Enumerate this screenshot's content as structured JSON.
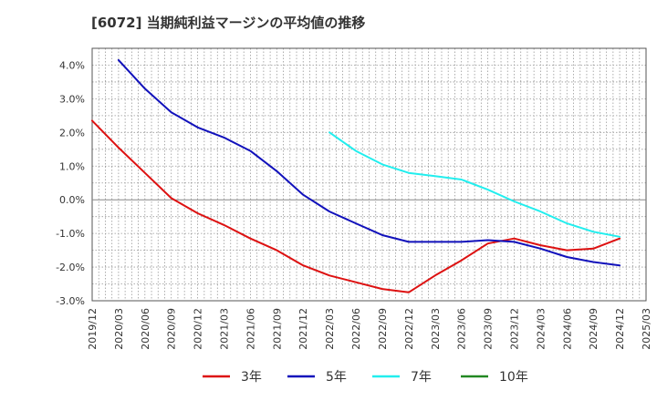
{
  "chart_data": {
    "type": "line",
    "title": "[6072]  当期純利益マージンの平均値の推移",
    "xlabel": "",
    "ylabel": "",
    "x": [
      "2019/12",
      "2020/03",
      "2020/06",
      "2020/09",
      "2020/12",
      "2021/03",
      "2021/06",
      "2021/09",
      "2021/12",
      "2022/03",
      "2022/06",
      "2022/09",
      "2022/12",
      "2023/03",
      "2023/06",
      "2023/09",
      "2023/12",
      "2024/03",
      "2024/06",
      "2024/09",
      "2024/12",
      "2025/03"
    ],
    "ylim": [
      -3.0,
      4.5
    ],
    "yticks": [
      4.0,
      3.0,
      2.0,
      1.0,
      0.0,
      -1.0,
      -2.0,
      -3.0
    ],
    "ytick_labels": [
      "4.0%",
      "3.0%",
      "2.0%",
      "1.0%",
      "0.0%",
      "-1.0%",
      "-2.0%",
      "-3.0%"
    ],
    "grid": true,
    "legend_position": "bottom",
    "series": [
      {
        "name": "3年",
        "color": "#dd1111",
        "values": [
          2.35,
          1.55,
          0.8,
          0.05,
          -0.4,
          -0.75,
          -1.15,
          -1.5,
          -1.95,
          -2.25,
          -2.45,
          -2.65,
          -2.75,
          -2.25,
          -1.8,
          -1.3,
          -1.15,
          -1.35,
          -1.5,
          -1.45,
          -1.15,
          null
        ]
      },
      {
        "name": "5年",
        "color": "#1111bb",
        "values": [
          null,
          4.15,
          3.3,
          2.6,
          2.15,
          1.85,
          1.45,
          0.85,
          0.15,
          -0.35,
          -0.7,
          -1.05,
          -1.25,
          -1.25,
          -1.25,
          -1.2,
          -1.25,
          -1.45,
          -1.7,
          -1.85,
          -1.95,
          null
        ]
      },
      {
        "name": "7年",
        "color": "#22eeee",
        "values": [
          null,
          null,
          null,
          null,
          null,
          null,
          null,
          null,
          null,
          2.0,
          1.45,
          1.05,
          0.8,
          0.7,
          0.6,
          0.3,
          -0.05,
          -0.35,
          -0.7,
          -0.95,
          -1.1,
          null
        ]
      },
      {
        "name": "10年",
        "color": "#228822",
        "values": [
          null,
          null,
          null,
          null,
          null,
          null,
          null,
          null,
          null,
          null,
          null,
          null,
          null,
          null,
          null,
          null,
          null,
          null,
          null,
          null,
          null,
          null
        ]
      }
    ]
  }
}
